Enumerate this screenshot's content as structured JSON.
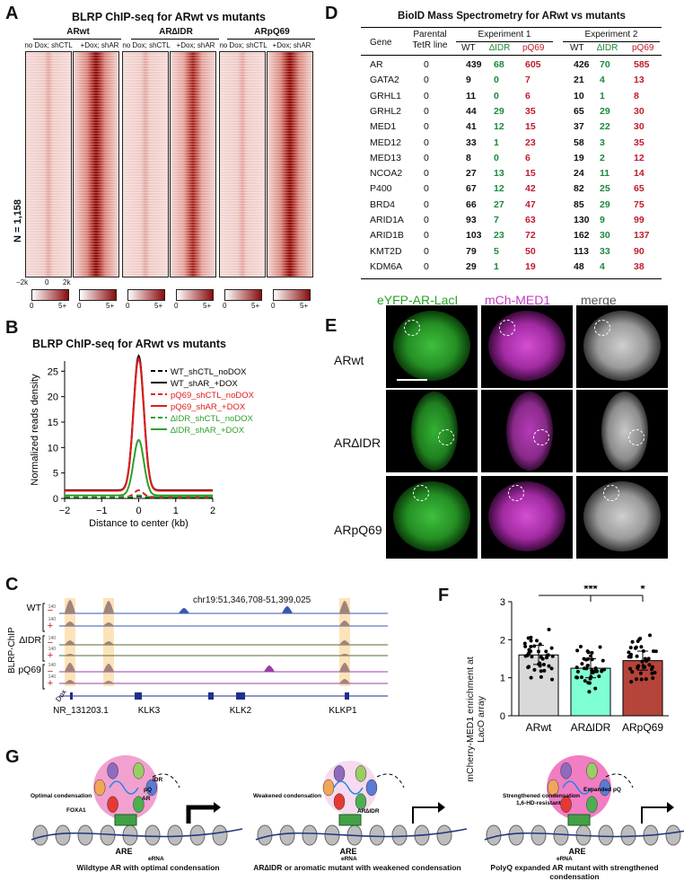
{
  "panels": {
    "A": "A",
    "B": "B",
    "C": "C",
    "D": "D",
    "E": "E",
    "F": "F",
    "G": "G"
  },
  "panelA": {
    "title": "BLRP ChIP-seq for ARwt vs mutants",
    "groups": [
      "ARwt",
      "AR∆IDR",
      "ARpQ69"
    ],
    "conditions": [
      "no Dox; shCTL",
      "+Dox; shAR"
    ],
    "n_label": "N = 1,158",
    "x_ticks": [
      "−2k",
      "0",
      "2k"
    ],
    "scale_min": "0",
    "scale_max": "5+"
  },
  "panelB": {
    "title": "BLRP ChIP-seq for ARwt vs mutants",
    "xlabel": "Distance to center (kb)",
    "ylabel": "Normalized reads density",
    "colors": {
      "wt": "#000000",
      "pq69": "#e31a1c",
      "didr": "#2ca02c"
    }
  },
  "chart_data": {
    "type": "line",
    "title": "BLRP ChIP-seq for ARwt vs mutants",
    "xlabel": "Distance to center (kb)",
    "ylabel": "Normalized reads density",
    "xlim": [
      -2,
      2
    ],
    "ylim": [
      0,
      27
    ],
    "x_ticks": [
      -2,
      -1,
      0,
      1,
      2
    ],
    "y_ticks": [
      0,
      5,
      10,
      15,
      20,
      25
    ],
    "legend": "top-right",
    "series": [
      {
        "name": "WT_shCTL_noDOX",
        "color": "#000000",
        "dash": true,
        "peak": 0.4,
        "base": 0.15,
        "width": 0.12
      },
      {
        "name": "WT_shAR_+DOX",
        "color": "#000000",
        "dash": false,
        "peak": 28,
        "base": 1.6,
        "width": 0.14
      },
      {
        "name": "pQ69_shCTL_noDOX",
        "color": "#e31a1c",
        "dash": true,
        "peak": 1.6,
        "base": 0.3,
        "width": 0.12
      },
      {
        "name": "pQ69_shAR_+DOX",
        "color": "#e31a1c",
        "dash": false,
        "peak": 27.5,
        "base": 1.5,
        "width": 0.14
      },
      {
        "name": "∆IDR_shCTL_noDOX",
        "color": "#2ca02c",
        "dash": true,
        "peak": 0.6,
        "base": 0.3,
        "width": 0.12
      },
      {
        "name": "∆IDR_shAR_+DOX",
        "color": "#2ca02c",
        "dash": false,
        "peak": 11.5,
        "base": 0.6,
        "width": 0.14
      }
    ]
  },
  "panelC": {
    "coords": "chr19:51,346,708-51,399,025",
    "y_label": "BLRP-ChIP",
    "tracks": [
      "WT",
      "∆IDR",
      "pQ69"
    ],
    "minus": "−",
    "plus": "+",
    "dox": "Dox",
    "genes": [
      "NR_131203.1",
      "KLK3",
      "KLK2",
      "KLKP1"
    ]
  },
  "panelD": {
    "title": "BioID Mass Spectrometry for ARwt vs mutants",
    "header": {
      "gene": "Gene",
      "parental": "Parental TetR line",
      "exp1": "Experiment 1",
      "exp2": "Experiment 2",
      "wt": "WT",
      "didr": "∆IDR",
      "pq": "pQ69"
    },
    "rows": [
      [
        "AR",
        "0",
        "439",
        "68",
        "605",
        "426",
        "70",
        "585"
      ],
      [
        "GATA2",
        "0",
        "9",
        "0",
        "7",
        "21",
        "4",
        "13"
      ],
      [
        "GRHL1",
        "0",
        "11",
        "0",
        "6",
        "10",
        "1",
        "8"
      ],
      [
        "GRHL2",
        "0",
        "44",
        "29",
        "35",
        "65",
        "29",
        "30"
      ],
      [
        "MED1",
        "0",
        "41",
        "12",
        "15",
        "37",
        "22",
        "30"
      ],
      [
        "MED12",
        "0",
        "33",
        "1",
        "23",
        "58",
        "3",
        "35"
      ],
      [
        "MED13",
        "0",
        "8",
        "0",
        "6",
        "19",
        "2",
        "12"
      ],
      [
        "NCOA2",
        "0",
        "27",
        "13",
        "15",
        "24",
        "11",
        "14"
      ],
      [
        "P400",
        "0",
        "67",
        "12",
        "42",
        "82",
        "25",
        "65"
      ],
      [
        "BRD4",
        "0",
        "66",
        "27",
        "47",
        "85",
        "29",
        "75"
      ],
      [
        "ARID1A",
        "0",
        "93",
        "7",
        "63",
        "130",
        "9",
        "99"
      ],
      [
        "ARID1B",
        "0",
        "103",
        "23",
        "72",
        "162",
        "30",
        "137"
      ],
      [
        "KMT2D",
        "0",
        "79",
        "5",
        "50",
        "113",
        "33",
        "90"
      ],
      [
        "KDM6A",
        "0",
        "29",
        "1",
        "19",
        "48",
        "4",
        "38"
      ]
    ]
  },
  "panelE": {
    "col_labels": [
      "eYFP-AR-LacI",
      "mCh-MED1",
      "merge"
    ],
    "row_labels": [
      "ARwt",
      "AR∆IDR",
      "ARpQ69"
    ]
  },
  "panelF": {
    "ylabel": "mCherry-MED1 enrichment at LacO array",
    "categories": [
      "ARwt",
      "AR∆IDR",
      "ARpQ69"
    ],
    "means": [
      1.6,
      1.25,
      1.45
    ],
    "colors": [
      "#d9d9d9",
      "#7fffd4",
      "#b5443a"
    ],
    "ylim": [
      0,
      3
    ],
    "y_ticks": [
      "0",
      "1",
      "2",
      "3"
    ],
    "sig1": "***",
    "sig2": "*"
  },
  "panelG": {
    "captions": [
      "Wildtype AR with optimal condensation",
      "AR∆IDR or aromatic mutant with weakened condensation",
      "PolyQ expanded AR mutant with strengthened condensation"
    ],
    "labels1": [
      "Optimal condensation",
      "FOXA1",
      "ARE",
      "IDR",
      "pQ",
      "AR",
      "eRNA"
    ],
    "labels2": [
      "Weakened condensation",
      "AR∆IDR",
      "ARE",
      "eRNA"
    ],
    "labels3": [
      "Strengthened condensation",
      "1,6-HD-resistant",
      "Expanded pQ",
      "ARE",
      "eRNA"
    ]
  }
}
